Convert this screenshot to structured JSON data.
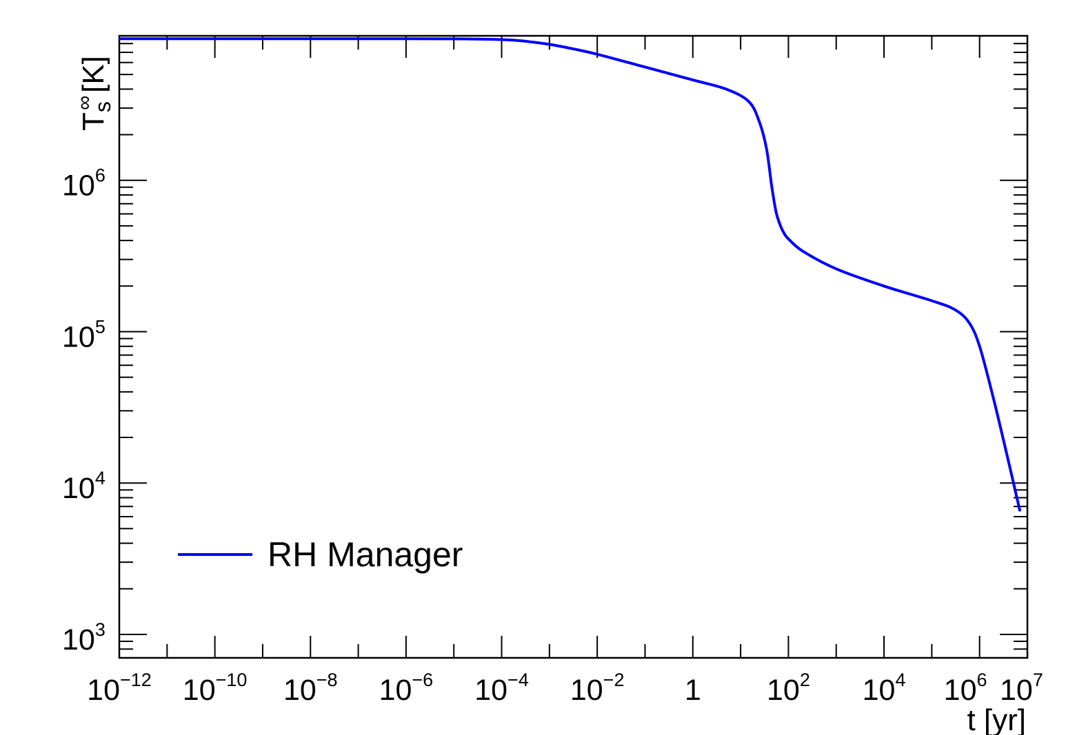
{
  "chart_data": {
    "type": "line",
    "xlabel": "t [yr]",
    "ylabel": {
      "base": "T",
      "sup": "∞",
      "sub": "s",
      "rest": " [K]"
    },
    "xscale": "log",
    "yscale": "log",
    "xlim": [
      1e-12,
      10000000.0
    ],
    "ylim": [
      700,
      9000000
    ],
    "x_tick_labels": [
      {
        "value": 1e-12,
        "base": "10",
        "exp": "−12"
      },
      {
        "value": 1e-10,
        "base": "10",
        "exp": "−10"
      },
      {
        "value": 1e-08,
        "base": "10",
        "exp": "−8"
      },
      {
        "value": 1e-06,
        "base": "10",
        "exp": "−6"
      },
      {
        "value": 0.0001,
        "base": "10",
        "exp": "−4"
      },
      {
        "value": 0.01,
        "base": "10",
        "exp": "−2"
      },
      {
        "value": 1,
        "base": "1",
        "exp": ""
      },
      {
        "value": 100.0,
        "base": "10",
        "exp": "2"
      },
      {
        "value": 10000.0,
        "base": "10",
        "exp": "4"
      },
      {
        "value": 1000000.0,
        "base": "10",
        "exp": "6"
      },
      {
        "value": 10000000.0,
        "base": "10",
        "exp": "7"
      }
    ],
    "y_tick_labels": [
      {
        "value": 1000,
        "base": "10",
        "exp": "3"
      },
      {
        "value": 10000,
        "base": "10",
        "exp": "4"
      },
      {
        "value": 100000,
        "base": "10",
        "exp": "5"
      },
      {
        "value": 1000000,
        "base": "10",
        "exp": "6"
      }
    ],
    "grid": false,
    "legend_position": "bottom-left",
    "series": [
      {
        "name": "RH Manager",
        "color": "#0000ff",
        "x": [
          1e-12,
          1e-10,
          1e-08,
          1e-06,
          1e-05,
          0.0001,
          0.0003,
          0.001,
          0.003,
          0.01,
          0.1,
          1,
          5,
          15,
          25,
          35,
          45,
          55,
          65,
          80,
          100,
          200,
          1000,
          10000,
          100000,
          300000,
          600000,
          1000000,
          2000000,
          4000000,
          7000000
        ],
        "y": [
          8600000,
          8600000,
          8600000,
          8600000,
          8590000,
          8500000,
          8300000,
          7900000,
          7400000,
          6800000,
          5600000,
          4600000,
          4000000,
          3300000,
          2400000,
          1600000,
          900000,
          620000,
          520000,
          450000,
          410000,
          340000,
          260000,
          200000,
          160000,
          140000,
          115000,
          80000,
          35000,
          14000,
          6500
        ]
      }
    ]
  }
}
